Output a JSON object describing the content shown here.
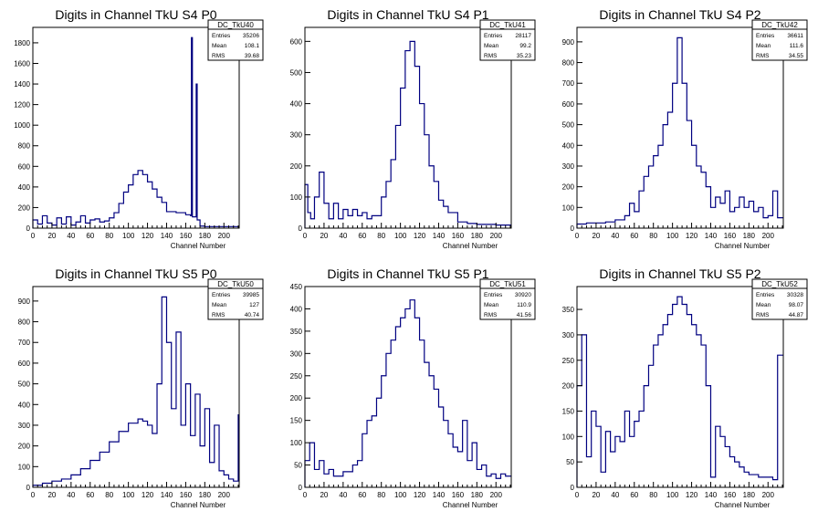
{
  "charts": [
    {
      "title": "Digits in Channel TkU S4 P0",
      "xlabel": "Channel Number",
      "stats": {
        "name": "DC_TkU40",
        "rows": [
          [
            "Entries",
            "35206"
          ],
          [
            "Mean",
            "108.1"
          ],
          [
            "RMS",
            "39.68"
          ]
        ]
      },
      "yticks": [
        200,
        400,
        600,
        800,
        1000,
        1200,
        1400,
        1600,
        1800
      ],
      "ylim": [
        0,
        1950
      ]
    },
    {
      "title": "Digits in Channel TkU S4 P1",
      "xlabel": "Channel Number",
      "stats": {
        "name": "DC_TkU41",
        "rows": [
          [
            "Entries",
            "28117"
          ],
          [
            "Mean",
            "99.2"
          ],
          [
            "RMS",
            "35.23"
          ]
        ]
      },
      "yticks": [
        100,
        200,
        300,
        400,
        500,
        600
      ],
      "ylim": [
        0,
        645
      ]
    },
    {
      "title": "Digits in Channel TkU S4 P2",
      "xlabel": "Channel Number",
      "stats": {
        "name": "DC_TkU42",
        "rows": [
          [
            "Entries",
            "36611"
          ],
          [
            "Mean",
            "111.6"
          ],
          [
            "RMS",
            "34.55"
          ]
        ]
      },
      "yticks": [
        100,
        200,
        300,
        400,
        500,
        600,
        700,
        800,
        900
      ],
      "ylim": [
        0,
        970
      ]
    },
    {
      "title": "Digits in Channel TkU S5 P0",
      "xlabel": "Channel Number",
      "stats": {
        "name": "DC_TkU50",
        "rows": [
          [
            "Entries",
            "39985"
          ],
          [
            "Mean",
            "127"
          ],
          [
            "RMS",
            "40.74"
          ]
        ]
      },
      "yticks": [
        100,
        200,
        300,
        400,
        500,
        600,
        700,
        800,
        900
      ],
      "ylim": [
        0,
        970
      ]
    },
    {
      "title": "Digits in Channel TkU S5 P1",
      "xlabel": "Channel Number",
      "stats": {
        "name": "DC_TkU51",
        "rows": [
          [
            "Entries",
            "30920"
          ],
          [
            "Mean",
            "110.9"
          ],
          [
            "RMS",
            "41.56"
          ]
        ]
      },
      "yticks": [
        50,
        100,
        150,
        200,
        250,
        300,
        350,
        400,
        450
      ],
      "ylim": [
        0,
        450
      ]
    },
    {
      "title": "Digits in Channel TkU S5 P2",
      "xlabel": "Channel Number",
      "stats": {
        "name": "DC_TkU52",
        "rows": [
          [
            "Entries",
            "30328"
          ],
          [
            "Mean",
            "98.07"
          ],
          [
            "RMS",
            "44.87"
          ]
        ]
      },
      "yticks": [
        50,
        100,
        150,
        200,
        250,
        300,
        350
      ],
      "ylim": [
        0,
        395
      ]
    }
  ],
  "xticks": [
    0,
    20,
    40,
    60,
    80,
    100,
    120,
    140,
    160,
    180,
    200
  ],
  "xlim": [
    0,
    216
  ],
  "line_color": "#000080",
  "chart_data": [
    {
      "type": "histogram",
      "title": "Digits in Channel TkU S4 P0",
      "xlabel": "Channel Number",
      "xlim": [
        0,
        216
      ],
      "ylim": [
        0,
        1950
      ],
      "points": [
        [
          0,
          80
        ],
        [
          5,
          40
        ],
        [
          10,
          120
        ],
        [
          15,
          50
        ],
        [
          20,
          30
        ],
        [
          25,
          100
        ],
        [
          30,
          40
        ],
        [
          35,
          110
        ],
        [
          40,
          30
        ],
        [
          45,
          60
        ],
        [
          50,
          120
        ],
        [
          55,
          50
        ],
        [
          60,
          80
        ],
        [
          65,
          90
        ],
        [
          70,
          60
        ],
        [
          75,
          70
        ],
        [
          80,
          100
        ],
        [
          85,
          150
        ],
        [
          90,
          240
        ],
        [
          95,
          350
        ],
        [
          100,
          420
        ],
        [
          105,
          520
        ],
        [
          110,
          560
        ],
        [
          115,
          520
        ],
        [
          120,
          450
        ],
        [
          125,
          380
        ],
        [
          130,
          300
        ],
        [
          135,
          250
        ],
        [
          140,
          160
        ],
        [
          145,
          160
        ],
        [
          150,
          150
        ],
        [
          155,
          150
        ],
        [
          160,
          130
        ],
        [
          165,
          120
        ],
        [
          166,
          1850
        ],
        [
          167,
          110
        ],
        [
          171,
          1400
        ],
        [
          172,
          80
        ],
        [
          175,
          20
        ],
        [
          180,
          15
        ],
        [
          190,
          15
        ],
        [
          200,
          15
        ],
        [
          210,
          15
        ]
      ]
    },
    {
      "type": "histogram",
      "title": "Digits in Channel TkU S4 P1",
      "xlabel": "Channel Number",
      "xlim": [
        0,
        216
      ],
      "ylim": [
        0,
        645
      ],
      "points": [
        [
          0,
          140
        ],
        [
          3,
          50
        ],
        [
          6,
          30
        ],
        [
          10,
          100
        ],
        [
          15,
          180
        ],
        [
          20,
          80
        ],
        [
          25,
          30
        ],
        [
          30,
          80
        ],
        [
          35,
          30
        ],
        [
          40,
          60
        ],
        [
          45,
          40
        ],
        [
          50,
          60
        ],
        [
          55,
          40
        ],
        [
          60,
          50
        ],
        [
          65,
          30
        ],
        [
          70,
          40
        ],
        [
          75,
          40
        ],
        [
          80,
          100
        ],
        [
          85,
          150
        ],
        [
          90,
          220
        ],
        [
          95,
          330
        ],
        [
          100,
          450
        ],
        [
          105,
          570
        ],
        [
          110,
          600
        ],
        [
          115,
          520
        ],
        [
          120,
          400
        ],
        [
          125,
          300
        ],
        [
          130,
          200
        ],
        [
          135,
          150
        ],
        [
          140,
          90
        ],
        [
          145,
          70
        ],
        [
          150,
          50
        ],
        [
          160,
          20
        ],
        [
          170,
          15
        ],
        [
          180,
          12
        ],
        [
          190,
          12
        ],
        [
          200,
          10
        ],
        [
          210,
          10
        ]
      ]
    },
    {
      "type": "histogram",
      "title": "Digits in Channel TkU S4 P2",
      "xlabel": "Channel Number",
      "xlim": [
        0,
        216
      ],
      "ylim": [
        0,
        970
      ],
      "points": [
        [
          0,
          20
        ],
        [
          10,
          25
        ],
        [
          20,
          25
        ],
        [
          30,
          30
        ],
        [
          40,
          40
        ],
        [
          50,
          60
        ],
        [
          55,
          120
        ],
        [
          60,
          80
        ],
        [
          65,
          180
        ],
        [
          70,
          250
        ],
        [
          75,
          300
        ],
        [
          80,
          350
        ],
        [
          85,
          400
        ],
        [
          90,
          500
        ],
        [
          95,
          560
        ],
        [
          100,
          700
        ],
        [
          105,
          920
        ],
        [
          110,
          700
        ],
        [
          115,
          520
        ],
        [
          120,
          400
        ],
        [
          125,
          300
        ],
        [
          130,
          270
        ],
        [
          135,
          200
        ],
        [
          140,
          100
        ],
        [
          145,
          150
        ],
        [
          150,
          120
        ],
        [
          155,
          180
        ],
        [
          160,
          80
        ],
        [
          165,
          100
        ],
        [
          170,
          150
        ],
        [
          175,
          100
        ],
        [
          180,
          130
        ],
        [
          185,
          80
        ],
        [
          190,
          100
        ],
        [
          195,
          50
        ],
        [
          200,
          60
        ],
        [
          205,
          180
        ],
        [
          210,
          50
        ]
      ]
    },
    {
      "type": "histogram",
      "title": "Digits in Channel TkU S5 P0",
      "xlabel": "Channel Number",
      "xlim": [
        0,
        216
      ],
      "ylim": [
        0,
        970
      ],
      "points": [
        [
          0,
          10
        ],
        [
          10,
          20
        ],
        [
          20,
          30
        ],
        [
          30,
          40
        ],
        [
          40,
          60
        ],
        [
          50,
          90
        ],
        [
          60,
          130
        ],
        [
          70,
          170
        ],
        [
          80,
          220
        ],
        [
          90,
          270
        ],
        [
          100,
          310
        ],
        [
          110,
          330
        ],
        [
          115,
          320
        ],
        [
          120,
          300
        ],
        [
          125,
          260
        ],
        [
          130,
          500
        ],
        [
          135,
          920
        ],
        [
          140,
          700
        ],
        [
          145,
          380
        ],
        [
          150,
          750
        ],
        [
          155,
          300
        ],
        [
          160,
          500
        ],
        [
          165,
          250
        ],
        [
          170,
          450
        ],
        [
          175,
          200
        ],
        [
          180,
          380
        ],
        [
          185,
          120
        ],
        [
          190,
          300
        ],
        [
          195,
          80
        ],
        [
          200,
          60
        ],
        [
          205,
          40
        ],
        [
          210,
          30
        ],
        [
          215,
          350
        ]
      ]
    },
    {
      "type": "histogram",
      "title": "Digits in Channel TkU S5 P1",
      "xlabel": "Channel Number",
      "xlim": [
        0,
        216
      ],
      "ylim": [
        0,
        450
      ],
      "points": [
        [
          0,
          60
        ],
        [
          5,
          100
        ],
        [
          10,
          40
        ],
        [
          15,
          60
        ],
        [
          20,
          30
        ],
        [
          25,
          40
        ],
        [
          30,
          25
        ],
        [
          40,
          35
        ],
        [
          50,
          50
        ],
        [
          55,
          60
        ],
        [
          60,
          120
        ],
        [
          65,
          150
        ],
        [
          70,
          160
        ],
        [
          75,
          200
        ],
        [
          80,
          250
        ],
        [
          85,
          300
        ],
        [
          90,
          330
        ],
        [
          95,
          360
        ],
        [
          100,
          380
        ],
        [
          105,
          400
        ],
        [
          110,
          420
        ],
        [
          115,
          380
        ],
        [
          120,
          330
        ],
        [
          125,
          280
        ],
        [
          130,
          250
        ],
        [
          135,
          220
        ],
        [
          140,
          180
        ],
        [
          145,
          150
        ],
        [
          150,
          120
        ],
        [
          155,
          90
        ],
        [
          160,
          80
        ],
        [
          165,
          150
        ],
        [
          170,
          60
        ],
        [
          175,
          100
        ],
        [
          180,
          40
        ],
        [
          185,
          50
        ],
        [
          190,
          25
        ],
        [
          195,
          30
        ],
        [
          200,
          20
        ],
        [
          205,
          30
        ],
        [
          210,
          25
        ]
      ]
    },
    {
      "type": "histogram",
      "title": "Digits in Channel TkU S5 P2",
      "xlabel": "Channel Number",
      "xlim": [
        0,
        216
      ],
      "ylim": [
        0,
        395
      ],
      "points": [
        [
          0,
          200
        ],
        [
          5,
          300
        ],
        [
          10,
          60
        ],
        [
          15,
          150
        ],
        [
          20,
          120
        ],
        [
          25,
          30
        ],
        [
          30,
          110
        ],
        [
          35,
          70
        ],
        [
          40,
          100
        ],
        [
          45,
          90
        ],
        [
          50,
          150
        ],
        [
          55,
          100
        ],
        [
          60,
          130
        ],
        [
          65,
          150
        ],
        [
          70,
          200
        ],
        [
          75,
          240
        ],
        [
          80,
          280
        ],
        [
          85,
          300
        ],
        [
          90,
          320
        ],
        [
          95,
          340
        ],
        [
          100,
          360
        ],
        [
          105,
          375
        ],
        [
          110,
          360
        ],
        [
          115,
          340
        ],
        [
          120,
          320
        ],
        [
          125,
          300
        ],
        [
          130,
          280
        ],
        [
          135,
          200
        ],
        [
          140,
          20
        ],
        [
          145,
          120
        ],
        [
          150,
          100
        ],
        [
          155,
          80
        ],
        [
          160,
          60
        ],
        [
          165,
          50
        ],
        [
          170,
          40
        ],
        [
          175,
          30
        ],
        [
          180,
          25
        ],
        [
          190,
          20
        ],
        [
          200,
          20
        ],
        [
          205,
          15
        ],
        [
          210,
          260
        ]
      ]
    }
  ]
}
